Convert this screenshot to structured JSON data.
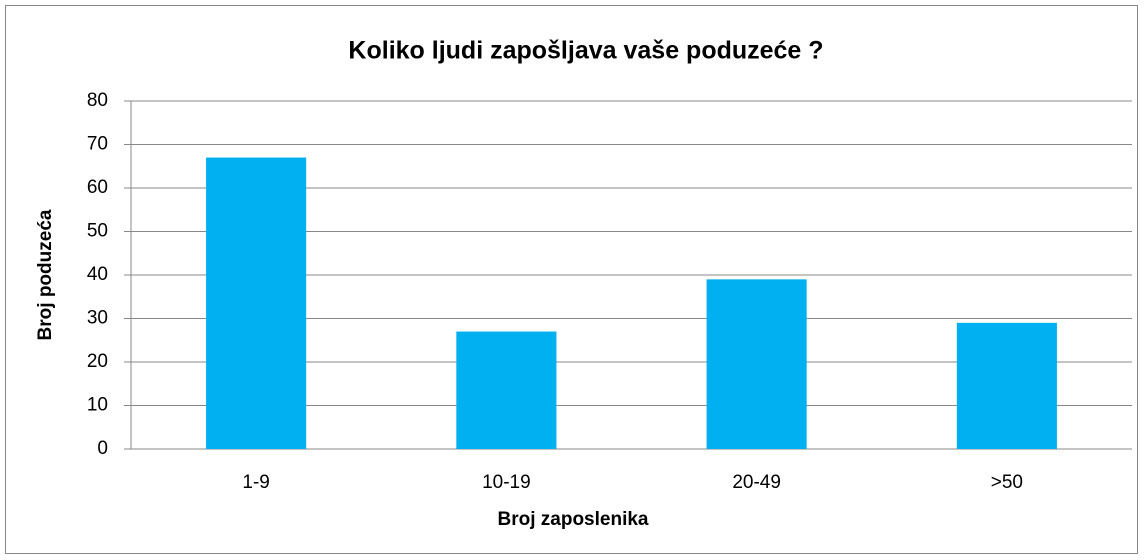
{
  "chart_data": {
    "type": "bar",
    "title": "Koliko ljudi zapošljava vaše poduzeće ?",
    "x_label": "Broj zaposlenika",
    "y_label": "Broj poduzeća",
    "categories": [
      "1-9",
      "10-19",
      "20-49",
      ">50"
    ],
    "values": [
      67,
      27,
      39,
      29
    ],
    "color": "#00b0f0",
    "ylim": [
      0,
      80
    ],
    "yticks": [
      0,
      10,
      20,
      30,
      40,
      50,
      60,
      70,
      80
    ],
    "grid": true
  }
}
